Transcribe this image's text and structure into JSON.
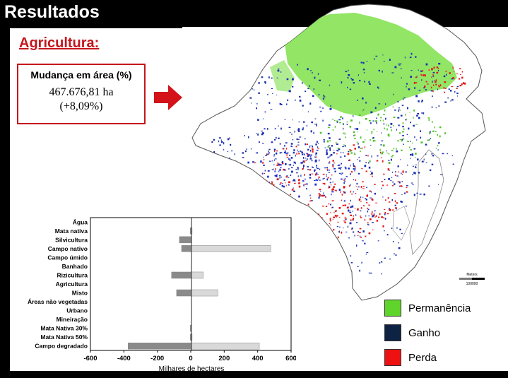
{
  "slide": {
    "title": "Resultados",
    "subtitle": "Agricultura:",
    "box": {
      "label": "Mudança em área (%)",
      "value": "467.676,81 ha",
      "percent": "(+8,09%)"
    }
  },
  "legend": {
    "items": [
      {
        "label": "Permanência",
        "color": "#5fd42b"
      },
      {
        "label": "Ganho",
        "color": "#0e2344"
      },
      {
        "label": "Perda",
        "color": "#ee1111"
      }
    ]
  },
  "map": {
    "scale_label": "Meters",
    "scale_value": "100000"
  },
  "chart_data": {
    "type": "bar",
    "orientation": "horizontal",
    "xlabel": "Milhares de hectares",
    "ylabel": "",
    "xlim": [
      -600,
      600
    ],
    "xticks": [
      "-600",
      "-400",
      "-200",
      "0",
      "200",
      "400",
      "600"
    ],
    "categories": [
      "Água",
      "Mata nativa",
      "Silvicultura",
      "Campo nativo",
      "Campo úmido",
      "Banhado",
      "Rizicultura",
      "Agricultura",
      "Misto",
      "Áreas não vegetadas",
      "Urbano",
      "Mineiração",
      "Mata Nativa 30%",
      "Mata Nativa 50%",
      "Campo degradado"
    ],
    "series": [
      {
        "color": "#8a8a8a",
        "values": [
          0,
          -3,
          -68,
          -55,
          0,
          0,
          -115,
          0,
          -85,
          0,
          0,
          0,
          -3,
          -3,
          -375
        ]
      },
      {
        "color": "#d9d9d9",
        "values": [
          0,
          8,
          6,
          478,
          0,
          0,
          75,
          0,
          162,
          0,
          0,
          0,
          3,
          8,
          410
        ]
      }
    ]
  }
}
